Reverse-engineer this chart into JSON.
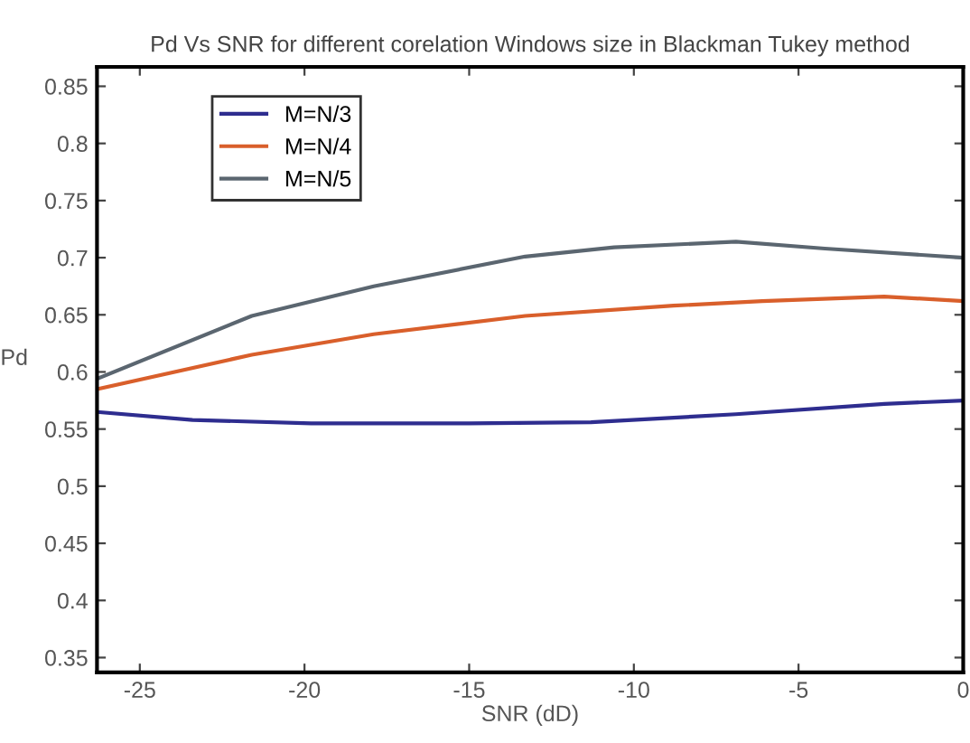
{
  "chart_data": {
    "type": "line",
    "title": "Pd Vs SNR for different corelation Windows size in Blackman Tukey method",
    "xlabel": "SNR (dD)",
    "ylabel": "Pd",
    "xlim": [
      -26.3,
      0
    ],
    "xticks": [
      -25,
      -20,
      -15,
      -10,
      -5,
      0
    ],
    "ylim": [
      0.337,
      0.867
    ],
    "yticks": [
      0.35,
      0.4,
      0.45,
      0.5,
      0.55,
      0.6,
      0.65,
      0.7,
      0.75,
      0.8,
      0.85
    ],
    "grid": false,
    "legend": "top left",
    "marker": "none",
    "line_style": "solid",
    "series": [
      {
        "name": "M=N/3",
        "color": "#2e2d8f",
        "x": [
          -26.3,
          -23.4,
          -19.8,
          -15,
          -11.3,
          -6.9,
          -2.4,
          0
        ],
        "values": [
          0.565,
          0.558,
          0.555,
          0.555,
          0.556,
          0.563,
          0.572,
          0.575
        ]
      },
      {
        "name": "M=N/4",
        "color": "#d95f2b",
        "x": [
          -26.3,
          -21.6,
          -17.9,
          -13.3,
          -8.8,
          -6.1,
          -2.4,
          0
        ],
        "values": [
          0.585,
          0.615,
          0.633,
          0.649,
          0.658,
          0.662,
          0.666,
          0.662
        ]
      },
      {
        "name": "M=N/5",
        "color": "#5b6670",
        "x": [
          -26.3,
          -21.6,
          -17.9,
          -13.3,
          -10.6,
          -6.9,
          -4.2,
          0
        ],
        "values": [
          0.594,
          0.649,
          0.675,
          0.701,
          0.709,
          0.714,
          0.708,
          0.7
        ]
      }
    ]
  }
}
